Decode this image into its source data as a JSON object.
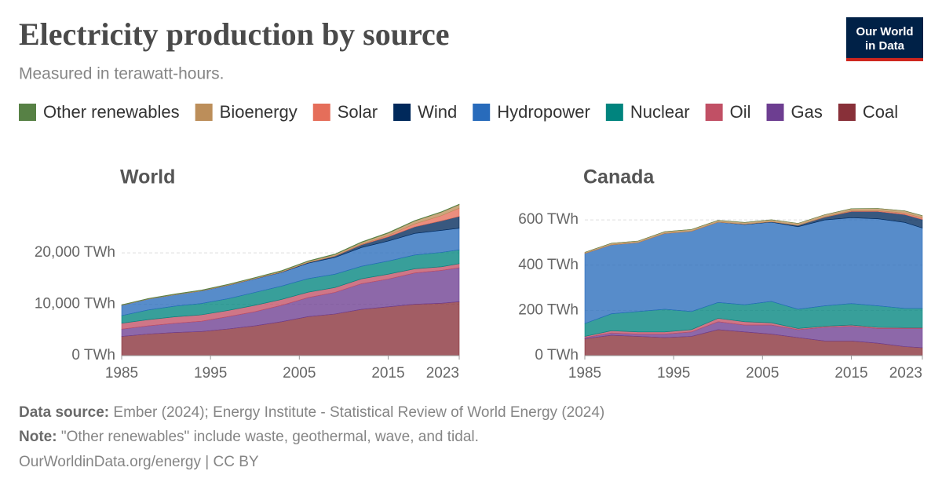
{
  "title": "Electricity production by source",
  "subtitle": "Measured in terawatt-hours.",
  "logo": [
    "Our World",
    "in Data"
  ],
  "legend": [
    {
      "name": "Other renewables",
      "color": "#578145"
    },
    {
      "name": "Bioenergy",
      "color": "#bc8e5a"
    },
    {
      "name": "Solar",
      "color": "#e56e5a"
    },
    {
      "name": "Wind",
      "color": "#00295b"
    },
    {
      "name": "Hydropower",
      "color": "#286bbb"
    },
    {
      "name": "Nuclear",
      "color": "#00847e"
    },
    {
      "name": "Oil",
      "color": "#c15065"
    },
    {
      "name": "Gas",
      "color": "#6d3e91"
    },
    {
      "name": "Coal",
      "color": "#883039"
    }
  ],
  "chart_data": [
    {
      "type": "stacked-area",
      "title": "World",
      "x": [
        1985,
        1988,
        1991,
        1994,
        1997,
        2000,
        2003,
        2006,
        2009,
        2012,
        2015,
        2018,
        2021,
        2023
      ],
      "xlim": [
        1985,
        2023
      ],
      "xticks": [
        1985,
        1995,
        2005,
        2015,
        2023
      ],
      "ylim": [
        0,
        29500
      ],
      "yticks": [
        {
          "value": 0,
          "label": "0 TWh"
        },
        {
          "value": 10000,
          "label": "10,000 TWh"
        },
        {
          "value": 20000,
          "label": "20,000 TWh"
        }
      ],
      "grid": true,
      "series": [
        {
          "values": [
            50,
            60,
            70,
            75,
            80,
            85,
            90,
            90,
            95,
            100,
            100,
            100,
            100,
            100
          ]
        },
        {
          "values": [
            50,
            70,
            90,
            100,
            120,
            150,
            190,
            230,
            290,
            370,
            470,
            560,
            670,
            690
          ]
        },
        {
          "values": [
            0,
            0,
            0,
            0,
            0,
            1,
            1,
            5,
            20,
            100,
            250,
            580,
            1020,
            1600
          ]
        },
        {
          "values": [
            0,
            0,
            0,
            5,
            10,
            30,
            65,
            130,
            270,
            520,
            830,
            1270,
            1850,
            2300
          ]
        },
        {
          "values": [
            2000,
            2100,
            2200,
            2450,
            2600,
            2650,
            2650,
            3000,
            3250,
            3650,
            3900,
            4200,
            4300,
            4200
          ]
        },
        {
          "values": [
            1500,
            1900,
            2100,
            2200,
            2300,
            2500,
            2600,
            2650,
            2600,
            2450,
            2550,
            2700,
            2800,
            2700
          ]
        },
        {
          "values": [
            1150,
            1200,
            1250,
            1250,
            1200,
            1250,
            1150,
            1050,
            950,
            950,
            950,
            800,
            700,
            800
          ]
        },
        {
          "values": [
            1400,
            1600,
            1800,
            2000,
            2400,
            2750,
            3200,
            3700,
            4200,
            5000,
            5400,
            6100,
            6400,
            6600
          ]
        },
        {
          "values": [
            3750,
            4200,
            4500,
            4700,
            5200,
            5800,
            6600,
            7600,
            8100,
            9000,
            9500,
            10000,
            10200,
            10500
          ]
        }
      ]
    },
    {
      "type": "stacked-area",
      "title": "Canada",
      "x": [
        1985,
        1988,
        1991,
        1994,
        1997,
        2000,
        2003,
        2006,
        2009,
        2012,
        2015,
        2018,
        2021,
        2023
      ],
      "xlim": [
        1985,
        2023
      ],
      "xticks": [
        1985,
        1995,
        2005,
        2015,
        2023
      ],
      "ylim": [
        0,
        670
      ],
      "yticks": [
        {
          "value": 0,
          "label": "0 TWh"
        },
        {
          "value": 200,
          "label": "200 TWh"
        },
        {
          "value": 400,
          "label": "400 TWh"
        },
        {
          "value": 600,
          "label": "600 TWh"
        }
      ],
      "grid": true,
      "series": [
        {
          "values": [
            0,
            0,
            0,
            0,
            0,
            0,
            0,
            0,
            0,
            0,
            0,
            0,
            0,
            0
          ]
        },
        {
          "values": [
            5,
            7,
            7,
            8,
            8,
            8,
            8,
            9,
            9,
            10,
            10,
            10,
            10,
            10
          ]
        },
        {
          "values": [
            0,
            0,
            0,
            0,
            0,
            0,
            0,
            0,
            0,
            1,
            3,
            4,
            6,
            7
          ]
        },
        {
          "values": [
            0,
            0,
            0,
            0,
            0,
            0,
            1,
            2,
            6,
            12,
            27,
            32,
            35,
            38
          ]
        },
        {
          "values": [
            310,
            305,
            305,
            335,
            355,
            355,
            355,
            350,
            365,
            380,
            380,
            385,
            380,
            355
          ]
        },
        {
          "values": [
            57,
            75,
            90,
            100,
            80,
            70,
            75,
            95,
            85,
            90,
            95,
            95,
            85,
            85
          ]
        },
        {
          "values": [
            5,
            10,
            10,
            10,
            10,
            15,
            15,
            10,
            5,
            5,
            5,
            5,
            4,
            4
          ]
        },
        {
          "values": [
            5,
            10,
            10,
            15,
            20,
            35,
            30,
            40,
            35,
            60,
            65,
            65,
            80,
            85
          ]
        },
        {
          "values": [
            75,
            90,
            85,
            80,
            85,
            115,
            105,
            95,
            80,
            65,
            65,
            55,
            40,
            35
          ]
        }
      ]
    }
  ],
  "footer": {
    "source_label": "Data source:",
    "source": "Ember (2024); Energy Institute - Statistical Review of World Energy (2024)",
    "note_label": "Note:",
    "note": "\"Other renewables\" include waste, geothermal, wave, and tidal.",
    "link": "OurWorldinData.org/energy | CC BY"
  }
}
